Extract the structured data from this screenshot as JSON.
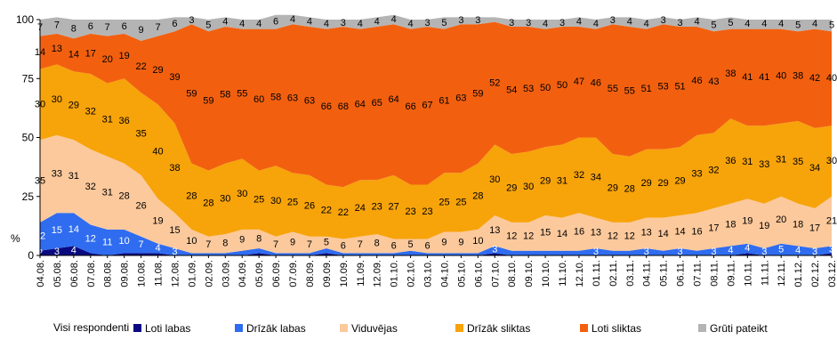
{
  "chart_data": {
    "type": "stacked_area",
    "y_label": "%",
    "legend_title": "Visi respondenti",
    "categories": [
      "04.08.",
      "05.08.",
      "06.08.",
      "07.08.",
      "08.08.",
      "09.08.",
      "10.08.",
      "11.08.",
      "12.08.",
      "01.09.",
      "02.09.",
      "03.09.",
      "04.09.",
      "05.09.",
      "06.09.",
      "07.09.",
      "08.09.",
      "09.09.",
      "10.09.",
      "11.09.",
      "12.09.",
      "01.10.",
      "02.10.",
      "03.10.",
      "04.10.",
      "05.10.",
      "06.10.",
      "07.10.",
      "08.10.",
      "09.10.",
      "10.10.",
      "11.10.",
      "12.10.",
      "01.11.",
      "02.11.",
      "03.11.",
      "04.11.",
      "05.11.",
      "06.11.",
      "07.11.",
      "08.11.",
      "09.11.",
      "10.11.",
      "11.11.",
      "12.11.",
      "01.12.",
      "02.12.",
      "03.12."
    ],
    "series": [
      {
        "name": "Loti labas",
        "color": "#0a0a80",
        "values": [
          2,
          3,
          4,
          1,
          0,
          1,
          1,
          1,
          0,
          0,
          0,
          0,
          0,
          1,
          0,
          0,
          0,
          1,
          0,
          0,
          0,
          0,
          0,
          0,
          0,
          0,
          0,
          1,
          0,
          0,
          0,
          0,
          0,
          0,
          0,
          0,
          0,
          0,
          0,
          0,
          0,
          0,
          1,
          0,
          0,
          0,
          0,
          1
        ]
      },
      {
        "name": "Drīzāk labas",
        "color": "#2f6cf0",
        "values": [
          12,
          15,
          14,
          12,
          11,
          10,
          7,
          4,
          3,
          1,
          1,
          1,
          2,
          2,
          1,
          1,
          1,
          2,
          1,
          1,
          1,
          1,
          2,
          1,
          1,
          1,
          1,
          3,
          2,
          2,
          2,
          2,
          2,
          3,
          2,
          2,
          3,
          2,
          3,
          2,
          3,
          4,
          4,
          3,
          5,
          4,
          3,
          3
        ]
      },
      {
        "name": "Viduvējas",
        "color": "#fcc99c",
        "values": [
          35,
          33,
          31,
          32,
          31,
          28,
          26,
          19,
          15,
          10,
          7,
          8,
          9,
          8,
          7,
          9,
          7,
          5,
          6,
          7,
          8,
          6,
          5,
          6,
          9,
          9,
          10,
          13,
          12,
          12,
          15,
          14,
          16,
          13,
          12,
          12,
          13,
          14,
          14,
          16,
          17,
          18,
          19,
          19,
          20,
          18,
          17,
          21
        ]
      },
      {
        "name": "Drīzāk sliktas",
        "color": "#f7a30a",
        "values": [
          30,
          30,
          29,
          32,
          31,
          36,
          35,
          40,
          38,
          28,
          28,
          30,
          30,
          25,
          30,
          25,
          26,
          22,
          22,
          24,
          23,
          27,
          23,
          23,
          25,
          25,
          28,
          30,
          29,
          30,
          29,
          31,
          32,
          34,
          29,
          28,
          29,
          29,
          29,
          33,
          32,
          36,
          31,
          33,
          31,
          35,
          34,
          30
        ]
      },
      {
        "name": "Loti sliktas",
        "color": "#f2600f",
        "values": [
          14,
          13,
          14,
          17,
          20,
          19,
          22,
          29,
          39,
          59,
          59,
          58,
          55,
          60,
          58,
          63,
          63,
          66,
          68,
          64,
          65,
          64,
          66,
          67,
          61,
          63,
          59,
          52,
          54,
          53,
          50,
          50,
          47,
          46,
          55,
          55,
          51,
          53,
          51,
          46,
          43,
          38,
          41,
          41,
          40,
          38,
          42,
          40
        ]
      },
      {
        "name": "Grūti pateikt",
        "color": "#b4b4b4",
        "values": [
          7,
          7,
          8,
          6,
          7,
          6,
          9,
          7,
          6,
          3,
          5,
          4,
          4,
          4,
          6,
          4,
          4,
          4,
          3,
          4,
          4,
          4,
          4,
          3,
          5,
          3,
          3,
          2,
          3,
          3,
          4,
          3,
          4,
          4,
          3,
          4,
          4,
          3,
          3,
          4,
          5,
          5,
          4,
          4,
          4,
          5,
          4,
          5
        ]
      }
    ],
    "ylim": [
      0,
      100
    ],
    "yticks": [
      0,
      25,
      50,
      75,
      100
    ],
    "grid": false
  }
}
